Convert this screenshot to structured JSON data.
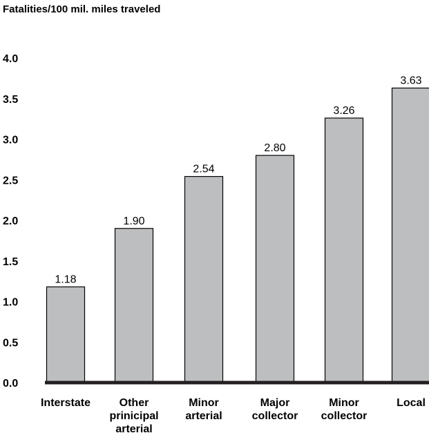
{
  "chart_data": {
    "type": "bar",
    "ylabel": "Fatalities/100 mil. miles traveled",
    "categories": [
      [
        "Interstate"
      ],
      [
        "Other",
        "prinicipal",
        "arterial"
      ],
      [
        "Minor",
        "arterial"
      ],
      [
        "Major",
        "collector"
      ],
      [
        "Minor",
        "collector"
      ],
      [
        "Local"
      ]
    ],
    "values": [
      1.18,
      1.9,
      2.54,
      2.8,
      3.26,
      3.63
    ],
    "value_labels": [
      "1.18",
      "1.90",
      "2.54",
      "2.80",
      "3.26",
      "3.63"
    ],
    "yticks": [
      "0.0",
      "0.5",
      "1.0",
      "1.5",
      "2.0",
      "2.5",
      "3.0",
      "3.5",
      "4.0"
    ],
    "ylim": [
      0,
      4
    ],
    "grid": false,
    "bar_color": "#bdbec0",
    "bar_edge_color": "#000000",
    "axis_color": "#231f20"
  }
}
